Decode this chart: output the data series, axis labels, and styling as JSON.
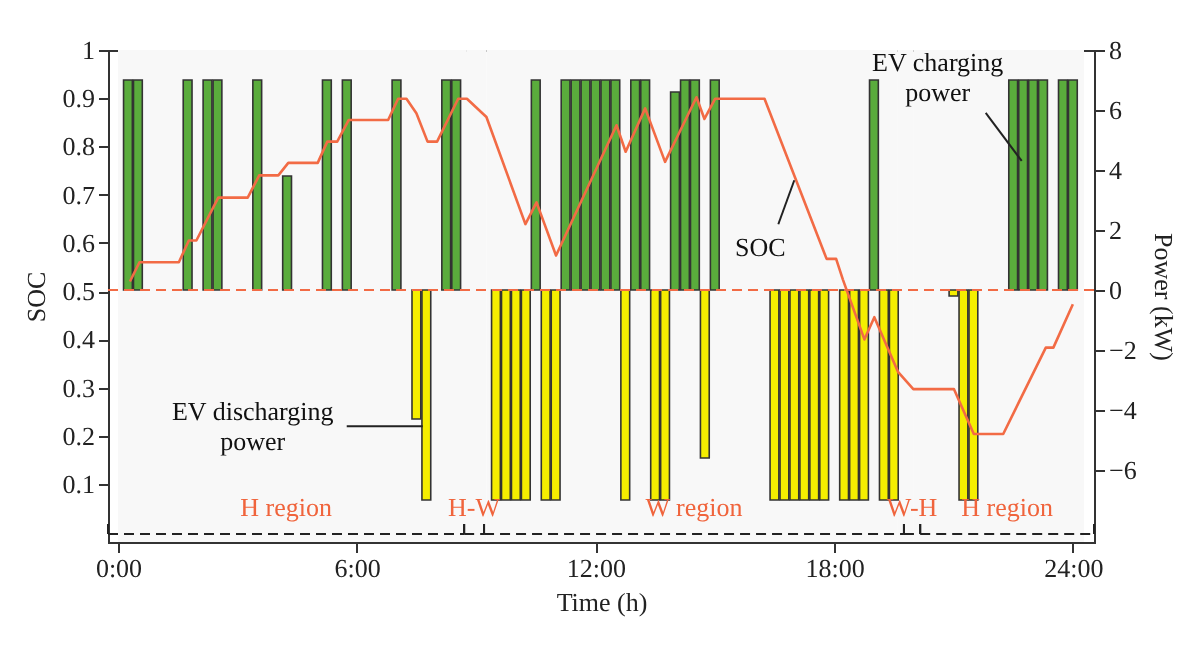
{
  "chart_data": {
    "type": "bar",
    "xlabel": "Time (h)",
    "ylabel": "SOC",
    "y2label": "Power (kW)",
    "xlim": [
      0,
      24.28
    ],
    "xticks": [
      {
        "value": 0,
        "label": "0:00"
      },
      {
        "value": 6,
        "label": "6:00"
      },
      {
        "value": 12,
        "label": "12:00"
      },
      {
        "value": 18,
        "label": "18:00"
      },
      {
        "value": 24,
        "label": "24:00"
      }
    ],
    "ylim": [
      -0.02,
      1
    ],
    "yticks": [
      0.1,
      0.2,
      0.3,
      0.4,
      0.5,
      0.6,
      0.7,
      0.8,
      0.9,
      1
    ],
    "y2lim": [
      -8.4,
      8
    ],
    "y2ticks": [
      {
        "value": -6,
        "label": "−6"
      },
      {
        "value": -4,
        "label": "−4"
      },
      {
        "value": -2,
        "label": "−2"
      },
      0,
      2,
      4,
      6,
      8
    ],
    "series": [
      {
        "type": "bar",
        "axis": "y2",
        "color": "#5aac3c",
        "x": [
          0.25,
          0.5,
          1.75,
          2.25,
          2.5,
          3.5,
          4.25,
          5.25,
          5.75,
          7.0,
          8.25,
          8.5,
          10.5,
          11.25,
          11.5,
          11.75,
          12.0,
          12.25,
          12.5,
          13.0,
          13.25,
          14.0,
          14.25,
          14.5,
          15.0,
          19.0,
          22.5,
          22.75,
          23.0,
          23.25,
          23.75,
          24.0
        ],
        "values": [
          7,
          7,
          7,
          7,
          7,
          7,
          3.8,
          7,
          7,
          7,
          7,
          7,
          7,
          7,
          7,
          7,
          7,
          7,
          7,
          7,
          7,
          6.6,
          7,
          7,
          7,
          7,
          7,
          7,
          7,
          7,
          7,
          7
        ]
      },
      {
        "type": "bar",
        "axis": "y2",
        "color": "#f5ee00",
        "x": [
          7.5,
          7.75,
          9.5,
          9.75,
          10.0,
          10.25,
          10.75,
          11.0,
          12.75,
          13.5,
          13.75,
          14.75,
          16.5,
          16.75,
          17.0,
          17.25,
          17.5,
          17.75,
          18.25,
          18.5,
          18.75,
          19.25,
          19.5,
          21.0,
          21.25,
          21.5
        ],
        "values": [
          -4.3,
          -7,
          -7,
          -7,
          -7,
          -7,
          -7,
          -7,
          -7,
          -7,
          -7,
          -5.6,
          -7,
          -7,
          -7,
          -7,
          -7,
          -7,
          -7,
          -7,
          -7,
          -7,
          -7,
          -0.2,
          -7,
          -7
        ]
      },
      {
        "type": "line",
        "color": "#f26b45",
        "x": [
          0.3,
          0.54,
          1.53,
          1.78,
          1.97,
          2.52,
          3.26,
          3.55,
          4.03,
          4.28,
          5.02,
          5.26,
          5.51,
          5.8,
          6.79,
          7.04,
          7.25,
          7.5,
          7.78,
          8.02,
          8.55,
          8.77,
          9.26,
          10.24,
          10.52,
          11.01,
          12.53,
          12.76,
          13.25,
          13.75,
          14.54,
          14.74,
          15.01,
          16.25,
          17.81,
          18.05,
          18.22,
          18.76,
          19.01,
          19.61,
          19.99,
          21.01,
          21.51,
          22.25,
          23.32,
          23.51,
          24.0
        ],
        "values": [
          0.52,
          0.56,
          0.56,
          0.605,
          0.605,
          0.694,
          0.694,
          0.74,
          0.74,
          0.766,
          0.766,
          0.81,
          0.81,
          0.855,
          0.855,
          0.899,
          0.899,
          0.869,
          0.81,
          0.81,
          0.899,
          0.899,
          0.861,
          0.639,
          0.684,
          0.574,
          0.844,
          0.789,
          0.879,
          0.768,
          0.902,
          0.857,
          0.899,
          0.899,
          0.567,
          0.567,
          0.524,
          0.4,
          0.446,
          0.332,
          0.297,
          0.297,
          0.204,
          0.204,
          0.383,
          0.383,
          0.473
        ]
      }
    ],
    "ref_lines": [
      {
        "axis": "y2",
        "value": 0,
        "color": "#f26b45",
        "line_style": "dashed"
      }
    ],
    "bands": [
      {
        "axis": "x",
        "from": 0,
        "to": 8.77,
        "label": "H region"
      },
      {
        "axis": "x",
        "from": 8.77,
        "to": 9.26,
        "label": "H-W"
      },
      {
        "axis": "x",
        "from": 9.26,
        "to": 19.6,
        "label": "W region"
      },
      {
        "axis": "x",
        "from": 19.6,
        "to": 20.0,
        "label": "W-H"
      },
      {
        "axis": "x",
        "from": 20.0,
        "to": 24.28,
        "label": "H region"
      }
    ],
    "annotations": [
      {
        "text": "EV discharging power",
        "x": 7.75,
        "y": 0.22
      },
      {
        "text": "SOC",
        "x": 16.9,
        "y": 0.73
      },
      {
        "text": "EV charging power",
        "x": 22.5,
        "y": 0.77
      }
    ],
    "legend": false,
    "grid": false,
    "marker": "none",
    "line_style": "solid"
  }
}
